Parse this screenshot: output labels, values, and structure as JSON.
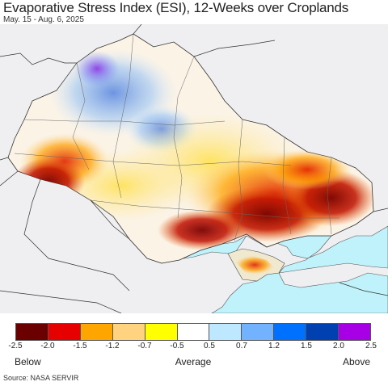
{
  "header": {
    "title": "Evaporative Stress Index (ESI), 12-Weeks over Croplands",
    "subtitle": "May. 15 - Aug. 6, 2025"
  },
  "legend": {
    "colors": [
      "#6b0000",
      "#e60000",
      "#ffa500",
      "#ffd37f",
      "#ffff00",
      "#ffffff",
      "#bee8ff",
      "#73b2ff",
      "#0070ff",
      "#0040b0",
      "#a800e6"
    ],
    "ticks": [
      "-2.5",
      "-2.0",
      "-1.5",
      "-1.2",
      "-0.7",
      "-0.5",
      "0.5",
      "0.7",
      "1.2",
      "1.5",
      "2.0",
      "2.5"
    ],
    "below_label": "Below",
    "average_label": "Average",
    "above_label": "Above"
  },
  "map": {
    "land_color": "#efeef0",
    "sea_color": "#bff2fb",
    "border_color": "#333333"
  },
  "footer": {
    "source": "Source: NASA SERVIR"
  }
}
